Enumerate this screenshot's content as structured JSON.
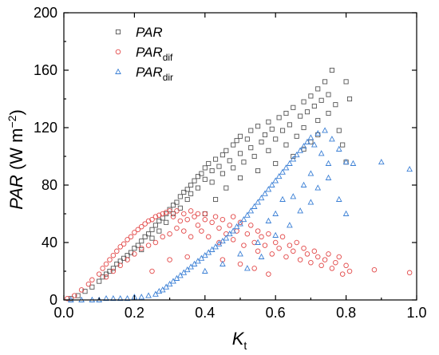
{
  "chart_data": {
    "type": "scatter",
    "title": "",
    "xlabel": "K",
    "xlabel_sub": "t",
    "ylabel_main": "PAR",
    "ylabel_units_pre": " (W m",
    "ylabel_units_sup": "−2",
    "ylabel_units_post": ")",
    "xlim": [
      0,
      1.0
    ],
    "ylim": [
      0,
      200
    ],
    "xticks": [
      "0.0",
      "0.2",
      "0.4",
      "0.6",
      "0.8",
      "1.0"
    ],
    "yticks": [
      "0",
      "40",
      "80",
      "120",
      "160",
      "200"
    ],
    "legend_position": "top-left",
    "grid": false,
    "series": [
      {
        "name": "PAR",
        "name_sub": "",
        "marker": "square",
        "color": "#555555",
        "points": [
          [
            0.02,
            1
          ],
          [
            0.04,
            3
          ],
          [
            0.06,
            6
          ],
          [
            0.08,
            9
          ],
          [
            0.1,
            13
          ],
          [
            0.11,
            16
          ],
          [
            0.12,
            18
          ],
          [
            0.13,
            20
          ],
          [
            0.14,
            22
          ],
          [
            0.15,
            25
          ],
          [
            0.16,
            27
          ],
          [
            0.17,
            29
          ],
          [
            0.18,
            31
          ],
          [
            0.19,
            33
          ],
          [
            0.2,
            36
          ],
          [
            0.21,
            38
          ],
          [
            0.22,
            41
          ],
          [
            0.22,
            35
          ],
          [
            0.23,
            44
          ],
          [
            0.24,
            46
          ],
          [
            0.25,
            49
          ],
          [
            0.25,
            43
          ],
          [
            0.26,
            52
          ],
          [
            0.27,
            55
          ],
          [
            0.27,
            48
          ],
          [
            0.28,
            57
          ],
          [
            0.29,
            60
          ],
          [
            0.29,
            54
          ],
          [
            0.3,
            63
          ],
          [
            0.31,
            66
          ],
          [
            0.31,
            60
          ],
          [
            0.32,
            68
          ],
          [
            0.33,
            72
          ],
          [
            0.33,
            64
          ],
          [
            0.34,
            75
          ],
          [
            0.35,
            77
          ],
          [
            0.35,
            70
          ],
          [
            0.36,
            80
          ],
          [
            0.36,
            74
          ],
          [
            0.37,
            83
          ],
          [
            0.38,
            86
          ],
          [
            0.38,
            78
          ],
          [
            0.39,
            88
          ],
          [
            0.4,
            92
          ],
          [
            0.4,
            84
          ],
          [
            0.41,
            95
          ],
          [
            0.42,
            90
          ],
          [
            0.42,
            82
          ],
          [
            0.43,
            98
          ],
          [
            0.44,
            93
          ],
          [
            0.45,
            101
          ],
          [
            0.45,
            88
          ],
          [
            0.46,
            104
          ],
          [
            0.47,
            97
          ],
          [
            0.48,
            108
          ],
          [
            0.48,
            92
          ],
          [
            0.49,
            111
          ],
          [
            0.5,
            102
          ],
          [
            0.5,
            114
          ],
          [
            0.51,
            96
          ],
          [
            0.52,
            112
          ],
          [
            0.53,
            106
          ],
          [
            0.53,
            118
          ],
          [
            0.54,
            100
          ],
          [
            0.55,
            121
          ],
          [
            0.56,
            110
          ],
          [
            0.57,
            115
          ],
          [
            0.58,
            124
          ],
          [
            0.58,
            104
          ],
          [
            0.59,
            119
          ],
          [
            0.6,
            112
          ],
          [
            0.61,
            127
          ],
          [
            0.62,
            118
          ],
          [
            0.63,
            130
          ],
          [
            0.63,
            108
          ],
          [
            0.64,
            122
          ],
          [
            0.65,
            134
          ],
          [
            0.66,
            114
          ],
          [
            0.67,
            128
          ],
          [
            0.68,
            138
          ],
          [
            0.68,
            120
          ],
          [
            0.69,
            131
          ],
          [
            0.7,
            142
          ],
          [
            0.7,
            110
          ],
          [
            0.71,
            135
          ],
          [
            0.72,
            147
          ],
          [
            0.72,
            125
          ],
          [
            0.73,
            139
          ],
          [
            0.74,
            152
          ],
          [
            0.75,
            143
          ],
          [
            0.75,
            130
          ],
          [
            0.76,
            160
          ],
          [
            0.77,
            136
          ],
          [
            0.78,
            118
          ],
          [
            0.79,
            108
          ],
          [
            0.8,
            152
          ],
          [
            0.81,
            140
          ],
          [
            0.8,
            96
          ],
          [
            0.4,
            60
          ],
          [
            0.43,
            70
          ],
          [
            0.46,
            78
          ],
          [
            0.5,
            85
          ],
          [
            0.55,
            90
          ],
          [
            0.6,
            95
          ],
          [
            0.65,
            100
          ],
          [
            0.68,
            105
          ],
          [
            0.72,
            115
          ]
        ]
      },
      {
        "name": "PAR",
        "name_sub": "dif",
        "marker": "circle",
        "color": "#e34a4a",
        "points": [
          [
            0.01,
            1
          ],
          [
            0.03,
            3
          ],
          [
            0.05,
            7
          ],
          [
            0.07,
            11
          ],
          [
            0.08,
            14
          ],
          [
            0.1,
            18
          ],
          [
            0.11,
            22
          ],
          [
            0.12,
            25
          ],
          [
            0.12,
            16
          ],
          [
            0.13,
            28
          ],
          [
            0.14,
            31
          ],
          [
            0.14,
            20
          ],
          [
            0.15,
            34
          ],
          [
            0.16,
            37
          ],
          [
            0.16,
            24
          ],
          [
            0.17,
            39
          ],
          [
            0.18,
            42
          ],
          [
            0.18,
            28
          ],
          [
            0.19,
            44
          ],
          [
            0.2,
            47
          ],
          [
            0.2,
            32
          ],
          [
            0.21,
            49
          ],
          [
            0.22,
            51
          ],
          [
            0.22,
            36
          ],
          [
            0.23,
            53
          ],
          [
            0.24,
            55
          ],
          [
            0.24,
            38
          ],
          [
            0.25,
            56
          ],
          [
            0.26,
            58
          ],
          [
            0.26,
            40
          ],
          [
            0.27,
            59
          ],
          [
            0.28,
            60
          ],
          [
            0.28,
            44
          ],
          [
            0.29,
            61
          ],
          [
            0.3,
            62
          ],
          [
            0.3,
            46
          ],
          [
            0.31,
            58
          ],
          [
            0.32,
            62
          ],
          [
            0.32,
            50
          ],
          [
            0.33,
            55
          ],
          [
            0.34,
            60
          ],
          [
            0.34,
            48
          ],
          [
            0.35,
            56
          ],
          [
            0.36,
            62
          ],
          [
            0.36,
            44
          ],
          [
            0.37,
            58
          ],
          [
            0.38,
            52
          ],
          [
            0.38,
            60
          ],
          [
            0.39,
            48
          ],
          [
            0.4,
            56
          ],
          [
            0.4,
            60
          ],
          [
            0.41,
            44
          ],
          [
            0.42,
            54
          ],
          [
            0.43,
            58
          ],
          [
            0.44,
            50
          ],
          [
            0.44,
            40
          ],
          [
            0.45,
            56
          ],
          [
            0.46,
            46
          ],
          [
            0.47,
            52
          ],
          [
            0.48,
            58
          ],
          [
            0.48,
            42
          ],
          [
            0.49,
            48
          ],
          [
            0.5,
            54
          ],
          [
            0.51,
            38
          ],
          [
            0.52,
            46
          ],
          [
            0.53,
            52
          ],
          [
            0.54,
            40
          ],
          [
            0.55,
            48
          ],
          [
            0.55,
            34
          ],
          [
            0.56,
            44
          ],
          [
            0.57,
            38
          ],
          [
            0.58,
            46
          ],
          [
            0.59,
            32
          ],
          [
            0.6,
            40
          ],
          [
            0.61,
            36
          ],
          [
            0.62,
            44
          ],
          [
            0.63,
            30
          ],
          [
            0.64,
            38
          ],
          [
            0.65,
            34
          ],
          [
            0.66,
            40
          ],
          [
            0.67,
            28
          ],
          [
            0.68,
            36
          ],
          [
            0.69,
            32
          ],
          [
            0.7,
            26
          ],
          [
            0.71,
            34
          ],
          [
            0.72,
            30
          ],
          [
            0.73,
            24
          ],
          [
            0.74,
            28
          ],
          [
            0.75,
            32
          ],
          [
            0.76,
            22
          ],
          [
            0.77,
            26
          ],
          [
            0.78,
            30
          ],
          [
            0.79,
            18
          ],
          [
            0.8,
            24
          ],
          [
            0.81,
            20
          ],
          [
            0.88,
            21
          ],
          [
            0.98,
            19
          ],
          [
            0.25,
            20
          ],
          [
            0.3,
            28
          ],
          [
            0.35,
            30
          ],
          [
            0.45,
            28
          ],
          [
            0.5,
            25
          ],
          [
            0.54,
            22
          ],
          [
            0.58,
            18
          ]
        ]
      },
      {
        "name": "PAR",
        "name_sub": "dir",
        "marker": "triangle",
        "color": "#3a7fd5",
        "points": [
          [
            0.02,
            0
          ],
          [
            0.05,
            0
          ],
          [
            0.08,
            0
          ],
          [
            0.1,
            0
          ],
          [
            0.12,
            1
          ],
          [
            0.14,
            1
          ],
          [
            0.16,
            1
          ],
          [
            0.18,
            1
          ],
          [
            0.2,
            2
          ],
          [
            0.22,
            2
          ],
          [
            0.24,
            3
          ],
          [
            0.26,
            4
          ],
          [
            0.27,
            6
          ],
          [
            0.28,
            7
          ],
          [
            0.29,
            9
          ],
          [
            0.3,
            11
          ],
          [
            0.31,
            13
          ],
          [
            0.32,
            15
          ],
          [
            0.33,
            17
          ],
          [
            0.34,
            19
          ],
          [
            0.35,
            21
          ],
          [
            0.36,
            23
          ],
          [
            0.37,
            25
          ],
          [
            0.38,
            27
          ],
          [
            0.39,
            29
          ],
          [
            0.4,
            31
          ],
          [
            0.41,
            33
          ],
          [
            0.42,
            35
          ],
          [
            0.43,
            37
          ],
          [
            0.44,
            39
          ],
          [
            0.45,
            41
          ],
          [
            0.46,
            43
          ],
          [
            0.47,
            46
          ],
          [
            0.48,
            48
          ],
          [
            0.49,
            51
          ],
          [
            0.5,
            53
          ],
          [
            0.51,
            56
          ],
          [
            0.52,
            59
          ],
          [
            0.53,
            62
          ],
          [
            0.54,
            65
          ],
          [
            0.55,
            68
          ],
          [
            0.56,
            71
          ],
          [
            0.57,
            74
          ],
          [
            0.58,
            77
          ],
          [
            0.59,
            80
          ],
          [
            0.6,
            83
          ],
          [
            0.61,
            86
          ],
          [
            0.62,
            89
          ],
          [
            0.63,
            92
          ],
          [
            0.64,
            95
          ],
          [
            0.65,
            98
          ],
          [
            0.66,
            101
          ],
          [
            0.67,
            104
          ],
          [
            0.68,
            107
          ],
          [
            0.69,
            110
          ],
          [
            0.7,
            113
          ],
          [
            0.71,
            108
          ],
          [
            0.72,
            116
          ],
          [
            0.73,
            102
          ],
          [
            0.74,
            118
          ],
          [
            0.75,
            95
          ],
          [
            0.76,
            112
          ],
          [
            0.78,
            105
          ],
          [
            0.8,
            96
          ],
          [
            0.82,
            95
          ],
          [
            0.9,
            96
          ],
          [
            0.98,
            91
          ],
          [
            0.4,
            20
          ],
          [
            0.45,
            25
          ],
          [
            0.5,
            32
          ],
          [
            0.52,
            22
          ],
          [
            0.55,
            40
          ],
          [
            0.58,
            55
          ],
          [
            0.6,
            60
          ],
          [
            0.62,
            70
          ],
          [
            0.65,
            72
          ],
          [
            0.68,
            80
          ],
          [
            0.7,
            88
          ],
          [
            0.72,
            78
          ],
          [
            0.75,
            85
          ],
          [
            0.78,
            70
          ],
          [
            0.8,
            60
          ],
          [
            0.56,
            30
          ],
          [
            0.6,
            45
          ],
          [
            0.64,
            52
          ],
          [
            0.67,
            62
          ],
          [
            0.7,
            68
          ]
        ]
      }
    ]
  }
}
